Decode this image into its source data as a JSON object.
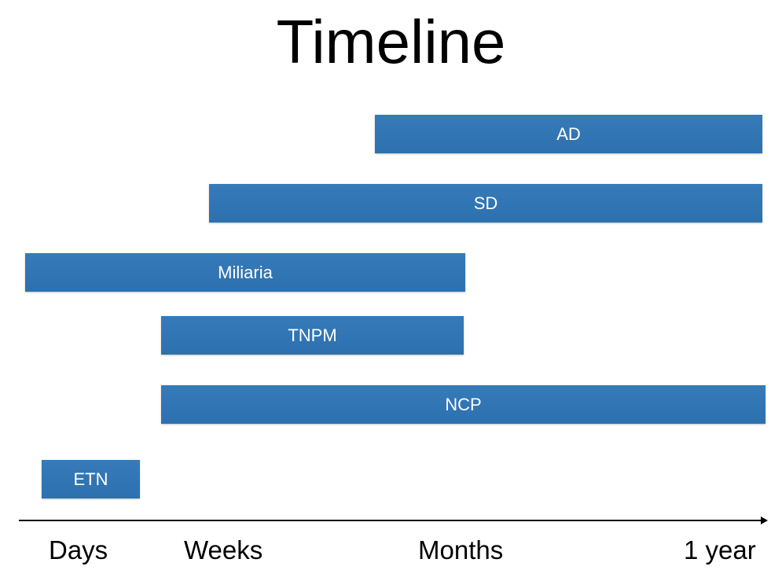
{
  "title": "Timeline",
  "colors": {
    "bar": "#2e75b6",
    "bar_text": "#ffffff",
    "axis": "#000000"
  },
  "bars": [
    {
      "label": "AD",
      "start": "Months (early)",
      "end": "1 year"
    },
    {
      "label": "SD",
      "start": "Weeks",
      "end": "1 year"
    },
    {
      "label": "Miliaria",
      "start": "Days",
      "end": "Months"
    },
    {
      "label": "TNPM",
      "start": "Weeks",
      "end": "Months"
    },
    {
      "label": "NCP",
      "start": "Weeks",
      "end": "1 year"
    },
    {
      "label": "ETN",
      "start": "Days",
      "end": "Weeks"
    }
  ],
  "axis": {
    "labels": [
      "Days",
      "Weeks",
      "Months",
      "1 year"
    ]
  }
}
